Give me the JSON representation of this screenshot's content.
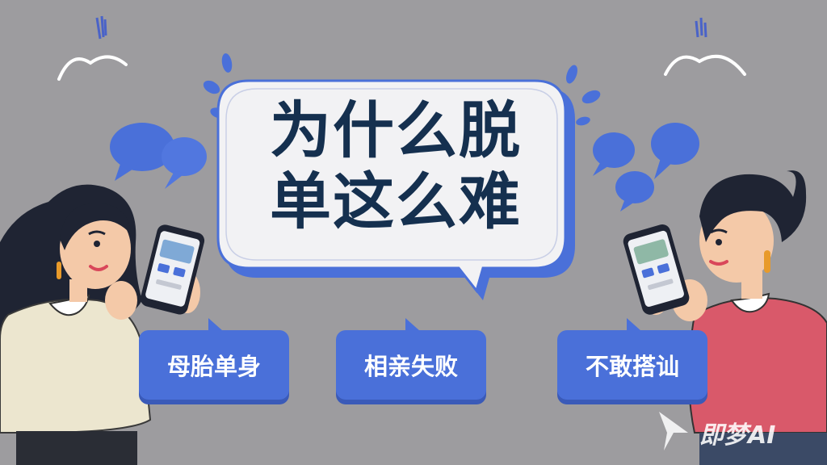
{
  "headline": {
    "line1": "为什么脱",
    "line2": "单这么难"
  },
  "tags": [
    {
      "label": "母胎单身"
    },
    {
      "label": "相亲失败"
    },
    {
      "label": "不敢搭讪"
    }
  ],
  "watermark": {
    "label": "即梦AI"
  },
  "colors": {
    "background": "#9d9c9f",
    "accent_blue": "#4a70d9",
    "headline_text": "#15304f",
    "bubble_fill": "#f2f2f4",
    "woman_sweater": "#ece6cf",
    "man_sweater": "#d9596a"
  },
  "icons": [
    "chat-bubble-icon",
    "splash-drop-icon",
    "eyebrow-arc-icon",
    "phone-icon",
    "logo-icon"
  ]
}
